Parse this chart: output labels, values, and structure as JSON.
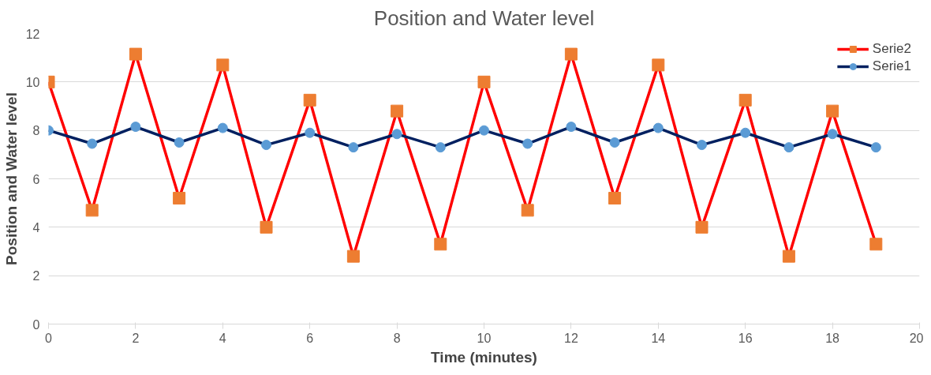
{
  "chart_data": {
    "type": "line",
    "title": "Position and Water level",
    "xlabel": "Time (minutes)",
    "ylabel": "Position and Water level",
    "x": [
      0,
      1,
      2,
      3,
      4,
      5,
      6,
      7,
      8,
      9,
      10,
      11,
      12,
      13,
      14,
      15,
      16,
      17,
      18,
      19
    ],
    "series": [
      {
        "name": "Serie2",
        "color": "#ff0000",
        "marker": "square",
        "colors": [
          "#ed7d31",
          "#ed7d31",
          "#ed7d31",
          "#ed7d31",
          "#ed7d31",
          "#ed7d31",
          "#ed7d31",
          "#ed7d31",
          "#ed7d31",
          "#ed7d31",
          "#ed7d31",
          "#ed7d31",
          "#ed7d31",
          "#ed7d31",
          "#ed7d31",
          "#ed7d31",
          "#ed7d31",
          "#ed7d31",
          "#ed7d31",
          "#ed7d31"
        ],
        "values": [
          10.0,
          4.7,
          11.15,
          5.2,
          10.7,
          4.0,
          9.25,
          2.8,
          8.8,
          3.3,
          10.0,
          4.7,
          11.15,
          5.2,
          10.7,
          4.0,
          9.25,
          2.8,
          8.8,
          3.3
        ]
      },
      {
        "name": "Serie1",
        "color": "#002060",
        "marker": "circle",
        "colors": [
          "#5b9bd5",
          "#5b9bd5",
          "#5b9bd5",
          "#5b9bd5",
          "#5b9bd5",
          "#5b9bd5",
          "#5b9bd5",
          "#5b9bd5",
          "#5b9bd5",
          "#5b9bd5",
          "#5b9bd5",
          "#5b9bd5",
          "#5b9bd5",
          "#5b9bd5",
          "#5b9bd5",
          "#5b9bd5",
          "#5b9bd5",
          "#5b9bd5",
          "#5b9bd5",
          "#5b9bd5"
        ],
        "values": [
          8.0,
          7.45,
          8.15,
          7.5,
          8.1,
          7.4,
          7.9,
          7.3,
          7.85,
          7.3,
          8.0,
          7.45,
          8.15,
          7.5,
          8.1,
          7.4,
          7.9,
          7.3,
          7.85,
          7.3
        ]
      }
    ],
    "xlim": [
      0,
      20
    ],
    "xticks": [
      0,
      2,
      4,
      6,
      8,
      10,
      12,
      14,
      16,
      18,
      20
    ],
    "ylim": [
      0,
      12
    ],
    "yticks": [
      0,
      2,
      4,
      6,
      8,
      10,
      12
    ],
    "grid": "y",
    "legend": "top right"
  }
}
